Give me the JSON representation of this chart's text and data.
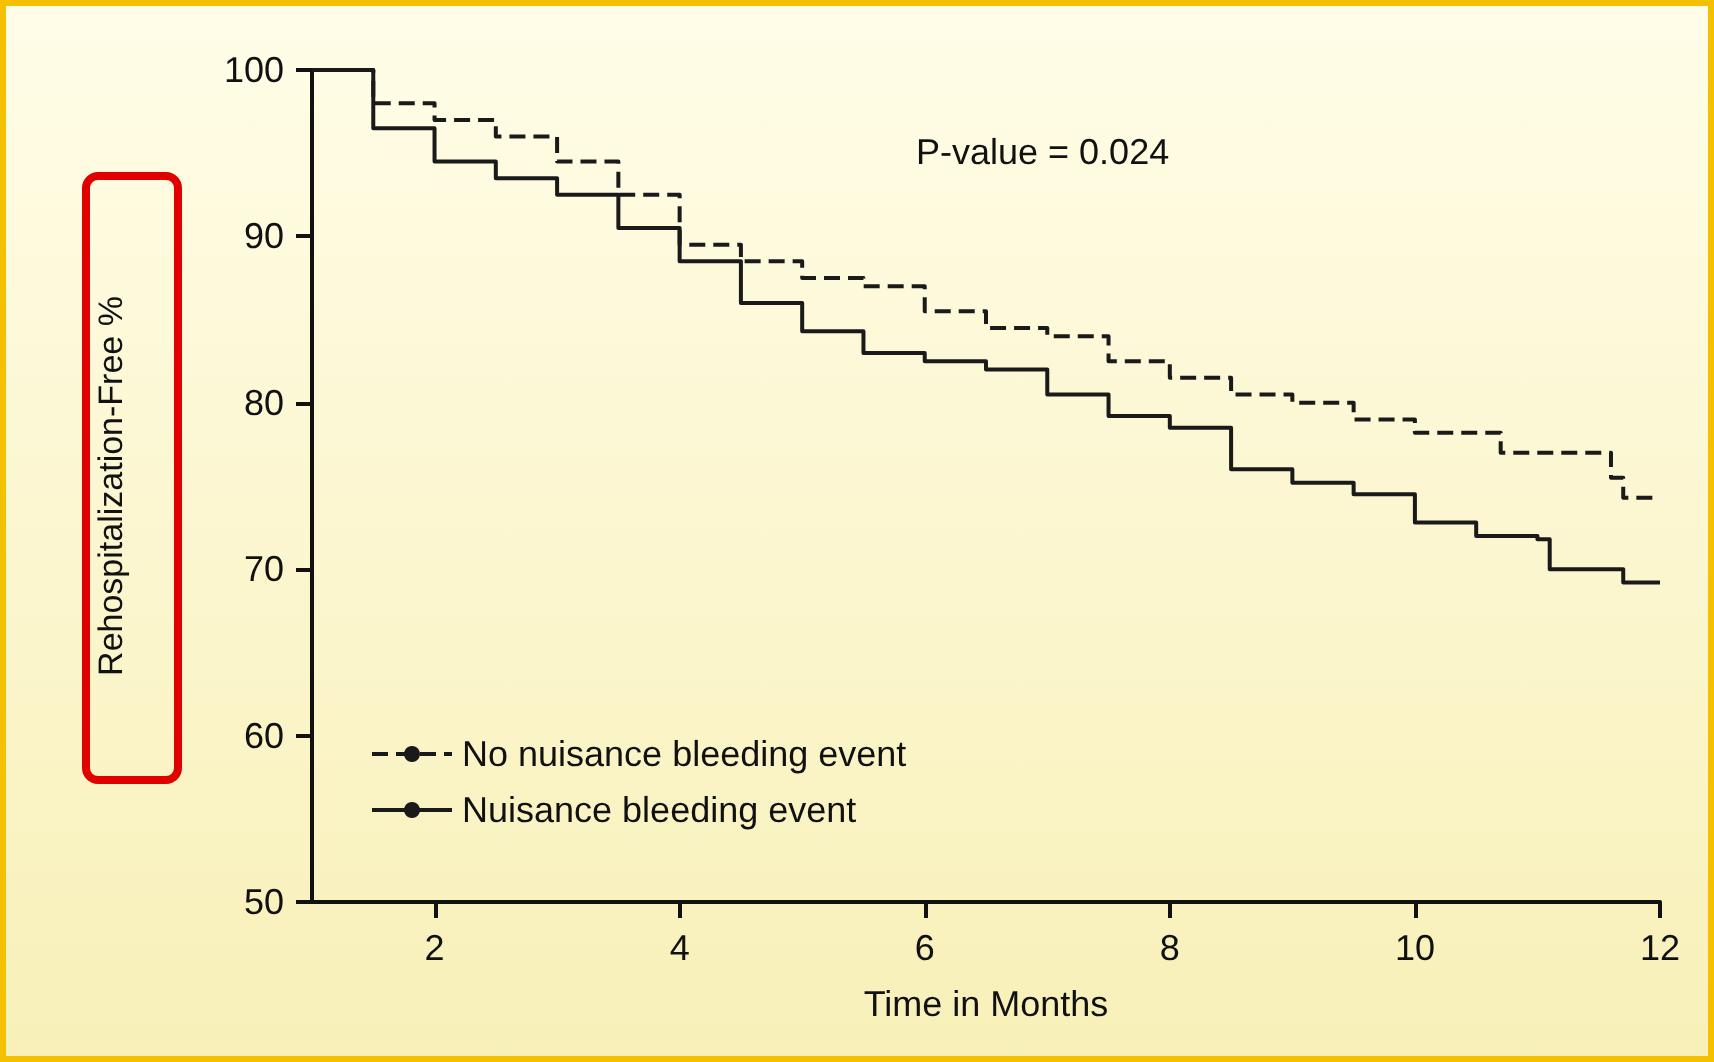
{
  "chart_data": {
    "type": "step",
    "xlabel": "Time in Months",
    "ylabel": "Rehospitalization-Free %",
    "annotations": [
      "P-value = 0.024"
    ],
    "xlim": [
      1,
      12
    ],
    "xticks": [
      2,
      4,
      6,
      8,
      10,
      12
    ],
    "ylim": [
      50,
      100
    ],
    "yticks": [
      50,
      60,
      70,
      80,
      90,
      100
    ],
    "grid": false,
    "legend": "bottom left",
    "marker": "none",
    "series": [
      {
        "name": "No nuisance bleeding event",
        "color": "#1a1a1a",
        "line_style": "dashed",
        "x": [
          1,
          1.5,
          2,
          2.5,
          3,
          3.5,
          4,
          4.5,
          5,
          5.5,
          6,
          6.5,
          7,
          7.5,
          8,
          8.5,
          9,
          9.5,
          10,
          10.5,
          10.7,
          11.5,
          11.6,
          11.7,
          12
        ],
        "values": [
          100,
          98,
          97,
          96,
          94.5,
          92.5,
          89.5,
          88.5,
          87.5,
          87,
          85.5,
          84.5,
          84,
          82.5,
          81.5,
          80.5,
          80,
          79,
          78.2,
          78.2,
          77,
          77,
          75.5,
          74.3,
          74.3
        ]
      },
      {
        "name": "Nuisance bleeding event",
        "color": "#1a1a1a",
        "line_style": "solid",
        "x": [
          1,
          1.5,
          2,
          2.5,
          3,
          3.5,
          4,
          4.5,
          5,
          5.5,
          6,
          6.5,
          7,
          7.5,
          8,
          8.5,
          9,
          9.5,
          10,
          10.5,
          11,
          11.1,
          11.7,
          12
        ],
        "values": [
          100,
          96.5,
          94.5,
          93.5,
          92.5,
          90.5,
          88.5,
          86,
          84.3,
          83,
          82.5,
          82,
          80.5,
          79.2,
          78.5,
          76,
          75.2,
          74.5,
          72.8,
          72,
          71.8,
          70,
          69.2,
          69.2
        ]
      }
    ]
  }
}
